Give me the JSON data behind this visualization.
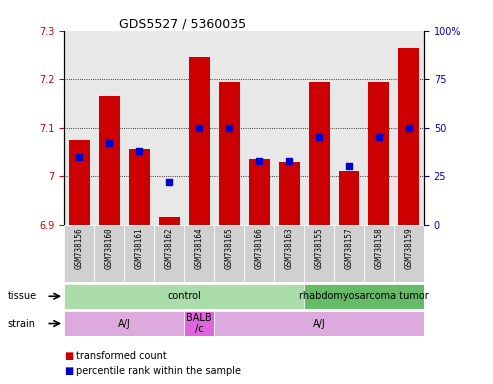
{
  "title": "GDS5527 / 5360035",
  "samples": [
    "GSM738156",
    "GSM738160",
    "GSM738161",
    "GSM738162",
    "GSM738164",
    "GSM738165",
    "GSM738166",
    "GSM738163",
    "GSM738155",
    "GSM738157",
    "GSM738158",
    "GSM738159"
  ],
  "bar_values": [
    7.075,
    7.165,
    7.055,
    6.915,
    7.245,
    7.195,
    7.035,
    7.03,
    7.195,
    7.01,
    7.195,
    7.265
  ],
  "percentile_values": [
    35,
    42,
    38,
    22,
    50,
    50,
    33,
    33,
    45,
    30,
    45,
    50
  ],
  "bar_bottom": 6.9,
  "ylim_left": [
    6.9,
    7.3
  ],
  "ylim_right": [
    0,
    100
  ],
  "yticks_left": [
    6.9,
    7.0,
    7.1,
    7.2,
    7.3
  ],
  "yticks_right": [
    0,
    25,
    50,
    75,
    100
  ],
  "ytick_labels_left": [
    "6.9",
    "7",
    "7.1",
    "7.2",
    "7.3"
  ],
  "ytick_labels_right": [
    "0",
    "25",
    "50",
    "75",
    "100%"
  ],
  "bar_color": "#cc0000",
  "dot_color": "#0000cc",
  "tissue_groups": [
    {
      "label": "control",
      "start": 0,
      "end": 8,
      "color": "#aaddaa"
    },
    {
      "label": "rhabdomyosarcoma tumor",
      "start": 8,
      "end": 12,
      "color": "#66bb66"
    }
  ],
  "strain_groups": [
    {
      "label": "A/J",
      "start": 0,
      "end": 4,
      "color": "#ddaadd"
    },
    {
      "label": "BALB\n/c",
      "start": 4,
      "end": 5,
      "color": "#dd66dd"
    },
    {
      "label": "A/J",
      "start": 5,
      "end": 12,
      "color": "#ddaadd"
    }
  ],
  "tissue_label": "tissue",
  "strain_label": "strain",
  "legend_items": [
    {
      "color": "#cc0000",
      "label": "transformed count"
    },
    {
      "color": "#0000cc",
      "label": "percentile rank within the sample"
    }
  ],
  "background_color": "#ffffff",
  "plot_bg_color": "#e8e8e8",
  "xtick_bg_color": "#d0d0d0"
}
